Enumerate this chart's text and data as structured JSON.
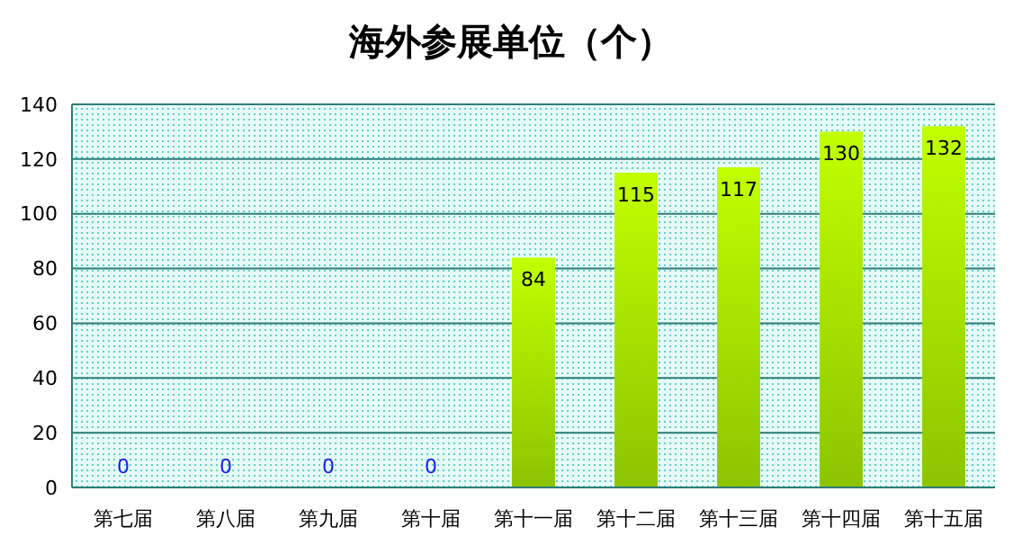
{
  "chart_data": {
    "type": "bar",
    "title": "海外参展单位（个）",
    "categories": [
      "第七届",
      "第八届",
      "第九届",
      "第十届",
      "第十一届",
      "第十二届",
      "第十三届",
      "第十四届",
      "第十五届"
    ],
    "values": [
      0,
      0,
      0,
      0,
      84,
      115,
      117,
      130,
      132
    ],
    "color": "#8cc400",
    "ylim": [
      0,
      140
    ],
    "yticks": [
      0,
      20,
      40,
      60,
      80,
      100,
      120,
      140
    ],
    "grid": "y",
    "data_labels": true
  }
}
